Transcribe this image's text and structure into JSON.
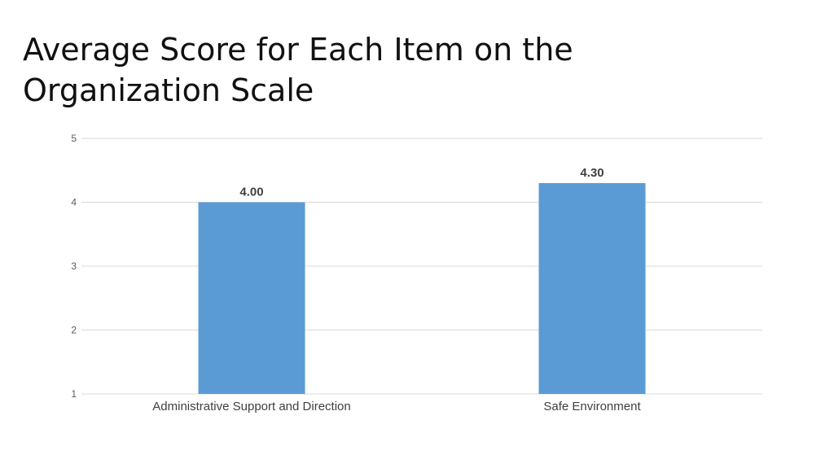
{
  "slide": {
    "title": "Average Score for Each Item on the Organization Scale"
  },
  "chart_data": {
    "type": "bar",
    "categories": [
      "Administrative Support and Direction",
      "Safe Environment"
    ],
    "values": [
      4.0,
      4.3
    ],
    "data_labels": [
      "4.00",
      "4.30"
    ],
    "title": "",
    "xlabel": "",
    "ylabel": "",
    "ylim": [
      1,
      5
    ],
    "yticks": [
      "1",
      "2",
      "3",
      "4",
      "5"
    ],
    "grid": true,
    "legend": "none",
    "bar_color": "#5b9bd5",
    "gridline_color": "#d9d9d9"
  }
}
